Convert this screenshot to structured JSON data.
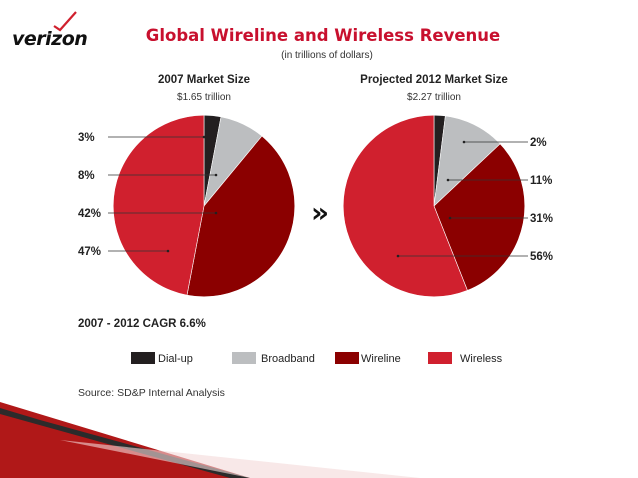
{
  "brand": {
    "logo_text": "verizon"
  },
  "title": "Global Wireline and Wireless Revenue",
  "subtitle": "(in trillions of dollars)",
  "chart_data": {
    "type": "pie",
    "series_labels": [
      "Dial-up",
      "Broadband",
      "Wireline",
      "Wireless"
    ],
    "colors": {
      "Dial-up": "#231f20",
      "Broadband": "#bcbec0",
      "Wireline": "#8b0000",
      "Wireless": "#d0202e"
    },
    "charts": [
      {
        "title": "2007 Market Size",
        "subtitle": "$1.65 trillion",
        "values": [
          3,
          8,
          42,
          47
        ],
        "labels": [
          "3%",
          "8%",
          "42%",
          "47%"
        ],
        "label_side": "left"
      },
      {
        "title": "Projected 2012 Market Size",
        "subtitle": "$2.27 trillion",
        "values": [
          2,
          11,
          31,
          56
        ],
        "labels": [
          "2%",
          "11%",
          "31%",
          "56%"
        ],
        "label_side": "right"
      }
    ],
    "arrow": "»",
    "annotation": "2007 - 2012 CAGR 6.6%",
    "legend_position": "bottom",
    "source": "Source: SD&P Internal Analysis"
  }
}
